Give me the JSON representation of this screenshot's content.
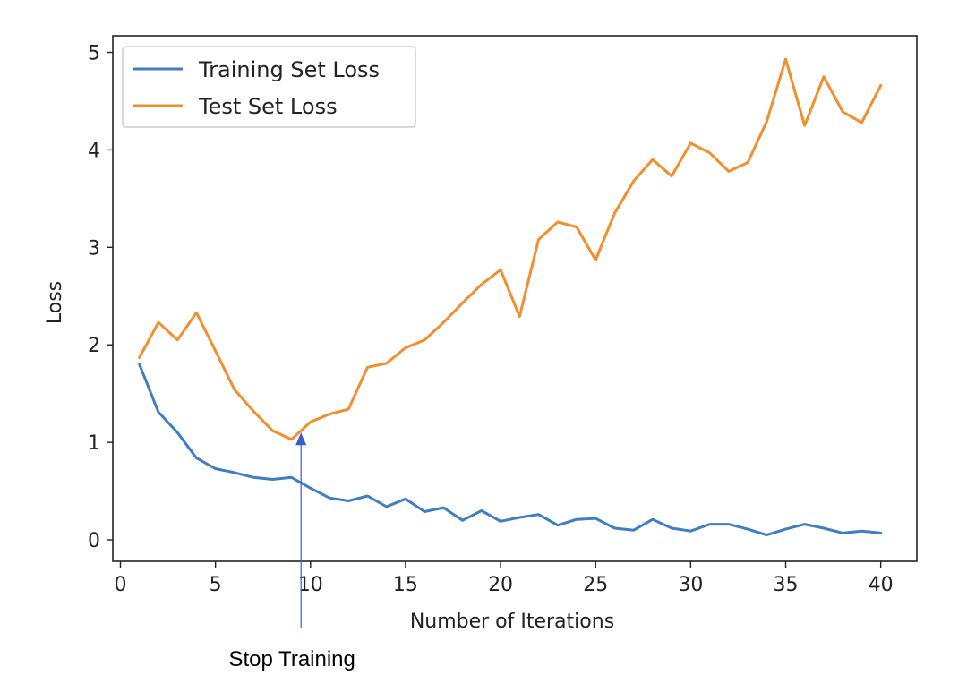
{
  "chart_data": {
    "type": "line",
    "xlabel": "Number of Iterations",
    "ylabel": "Loss",
    "xlim": [
      -0.4,
      41.9
    ],
    "ylim": [
      -0.22,
      5.17
    ],
    "xticks": [
      0,
      5,
      10,
      15,
      20,
      25,
      30,
      35,
      40
    ],
    "yticks": [
      0,
      1,
      2,
      3,
      4,
      5
    ],
    "grid": false,
    "legend_position": "top-left",
    "x": [
      1,
      2,
      3,
      4,
      5,
      6,
      7,
      8,
      9,
      10,
      11,
      12,
      13,
      14,
      15,
      16,
      17,
      18,
      19,
      20,
      21,
      22,
      23,
      24,
      25,
      26,
      27,
      28,
      29,
      30,
      31,
      32,
      33,
      34,
      35,
      36,
      37,
      38,
      39,
      40
    ],
    "series": [
      {
        "name": "Training Set Loss",
        "color": "#3f7ec2",
        "values": [
          1.8,
          1.31,
          1.1,
          0.84,
          0.73,
          0.69,
          0.64,
          0.62,
          0.64,
          0.53,
          0.43,
          0.4,
          0.45,
          0.34,
          0.42,
          0.29,
          0.33,
          0.2,
          0.3,
          0.19,
          0.23,
          0.26,
          0.15,
          0.21,
          0.22,
          0.12,
          0.1,
          0.21,
          0.12,
          0.09,
          0.16,
          0.16,
          0.11,
          0.05,
          0.11,
          0.16,
          0.12,
          0.07,
          0.09,
          0.07
        ]
      },
      {
        "name": "Test Set Loss",
        "color": "#f28e2b",
        "values": [
          1.87,
          2.23,
          2.05,
          2.33,
          1.94,
          1.54,
          1.32,
          1.12,
          1.03,
          1.21,
          1.29,
          1.34,
          1.77,
          1.81,
          1.97,
          2.05,
          2.23,
          2.43,
          2.62,
          2.77,
          2.29,
          3.08,
          3.26,
          3.21,
          2.87,
          3.35,
          3.68,
          3.9,
          3.73,
          4.07,
          3.97,
          3.78,
          3.87,
          4.29,
          4.93,
          4.25,
          4.75,
          4.39,
          4.28,
          4.66
        ]
      }
    ],
    "annotation": {
      "text": "Stop Training",
      "x": 9.5,
      "y": 1.1,
      "arrow_color": "#3a5ec8"
    }
  }
}
